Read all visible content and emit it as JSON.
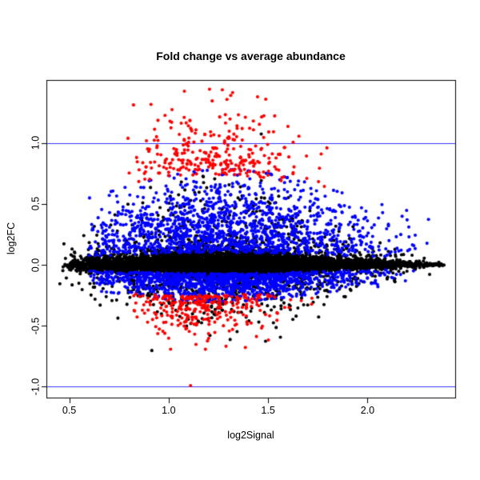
{
  "window": {
    "background": "#ffffff"
  },
  "chart_data": {
    "type": "scatter",
    "title": "Fold change vs average abundance",
    "xlabel": "log2Signal",
    "ylabel": "log2FC",
    "xlim": [
      0.387,
      2.443
    ],
    "ylim": [
      -1.092,
      1.512
    ],
    "xticks": [
      0.5,
      1.0,
      1.5,
      2.0
    ],
    "xtick_labels": [
      "0.5",
      "1.0",
      "1.5",
      "2.0"
    ],
    "yticks": [
      -1.0,
      -0.5,
      0.0,
      0.5,
      1.0
    ],
    "ytick_labels": [
      "-1.0",
      "-0.5",
      "0.0",
      "0.5",
      "1.0"
    ],
    "hlines": [
      {
        "y": 1.0,
        "color": "#0000ff"
      },
      {
        "y": -1.0,
        "color": "#0000ff"
      }
    ],
    "box_color": "#000000",
    "grid": false,
    "legend": null,
    "point_radius": 2.05,
    "seed": 7,
    "series": [
      {
        "name": "black-core",
        "color": "#000000",
        "n": 7200,
        "kind": "core",
        "xmin": 0.45,
        "xmax": 2.4,
        "xskew": 1.12,
        "taper": {
          "c": 1.22,
          "s": 0.48,
          "min": 0.08
        },
        "sigma_core": 0.062,
        "sigma_tail": 0.3,
        "tail_frac": 0.17,
        "neg_scale": 0.82
      },
      {
        "name": "blue-upper",
        "color": "#0000ff",
        "n": 1400,
        "kind": "band",
        "side": 1,
        "y0": 0.1,
        "sigma": 0.3,
        "cap": 0.78,
        "xmu": 1.28,
        "xsd": 0.4,
        "xmin": 0.6,
        "xmax": 2.32,
        "taper": {
          "c": 1.28,
          "s": 0.58,
          "min": 0.4
        }
      },
      {
        "name": "blue-lower",
        "color": "#0000ff",
        "n": 1150,
        "kind": "band",
        "side": -1,
        "y0": 0.07,
        "sigma": 0.11,
        "cap": 0.3,
        "xmu": 1.25,
        "xsd": 0.36,
        "xmin": 0.6,
        "xmax": 2.26,
        "taper": {
          "c": 1.25,
          "s": 0.5,
          "min": 0.45
        }
      },
      {
        "name": "red-upper",
        "color": "#ff0000",
        "n": 300,
        "kind": "band",
        "side": 1,
        "y0": 0.74,
        "sigma": 0.27,
        "cap": 1.44,
        "xmu": 1.22,
        "xsd": 0.24,
        "xmin": 0.78,
        "xmax": 1.92,
        "taper": {
          "c": 1.2,
          "s": 0.4,
          "min": 0.75
        }
      },
      {
        "name": "red-lower",
        "color": "#ff0000",
        "n": 285,
        "kind": "band",
        "side": -1,
        "y0": 0.25,
        "sigma": 0.15,
        "cap": 0.7,
        "xmu": 1.16,
        "xsd": 0.2,
        "xmin": 0.82,
        "xmax": 1.75,
        "taper": {
          "c": 1.15,
          "s": 0.4,
          "min": 0.8
        }
      }
    ],
    "outlier_points": [
      {
        "x": 1.11,
        "y": -0.99,
        "color": "#ff0000"
      }
    ]
  }
}
